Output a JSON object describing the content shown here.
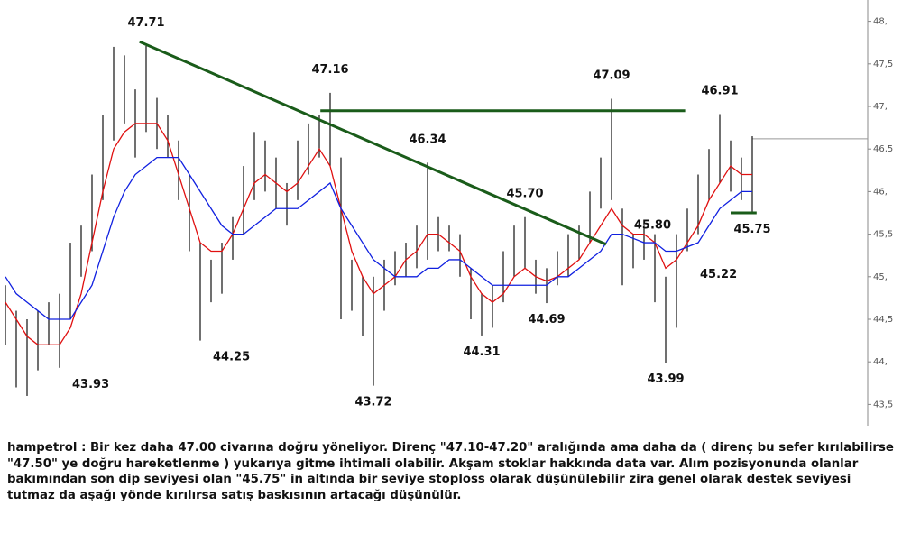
{
  "chart_data": {
    "type": "ohlc",
    "high": [
      44.9,
      44.6,
      44.5,
      44.6,
      44.7,
      44.8,
      45.4,
      45.6,
      46.2,
      46.9,
      47.7,
      47.6,
      47.2,
      47.71,
      47.1,
      46.9,
      46.6,
      46.2,
      45.4,
      45.2,
      45.4,
      45.7,
      46.3,
      46.7,
      46.6,
      46.4,
      46.1,
      46.6,
      46.8,
      46.9,
      47.16,
      46.4,
      45.2,
      45.0,
      45.0,
      45.2,
      45.3,
      45.4,
      45.6,
      46.34,
      45.7,
      45.6,
      45.5,
      45.1,
      44.8,
      44.9,
      45.3,
      45.6,
      45.7,
      45.2,
      45.1,
      45.3,
      45.5,
      45.6,
      46.0,
      46.4,
      47.09,
      45.8,
      45.5,
      45.6,
      45.5,
      45.0,
      45.5,
      45.8,
      46.2,
      46.5,
      46.91,
      46.6,
      46.4,
      46.65
    ],
    "low": [
      44.2,
      43.7,
      43.6,
      43.9,
      44.2,
      43.93,
      44.5,
      45.0,
      45.3,
      45.9,
      46.6,
      46.8,
      46.4,
      46.7,
      46.5,
      46.4,
      45.9,
      45.3,
      44.25,
      44.7,
      44.8,
      45.2,
      45.5,
      45.9,
      46.0,
      45.8,
      45.6,
      45.9,
      46.2,
      46.4,
      46.3,
      44.5,
      44.6,
      44.3,
      43.72,
      44.6,
      44.9,
      45.0,
      45.1,
      45.2,
      45.3,
      45.3,
      45.0,
      44.5,
      44.31,
      44.4,
      44.7,
      45.0,
      45.1,
      44.8,
      44.69,
      44.9,
      45.0,
      45.2,
      45.4,
      45.8,
      45.9,
      44.9,
      45.1,
      45.2,
      44.7,
      43.99,
      44.4,
      45.3,
      45.5,
      45.9,
      46.1,
      46.0,
      45.9,
      45.75
    ],
    "series": [
      {
        "color": "#e01010",
        "values": [
          44.7,
          44.5,
          44.3,
          44.2,
          44.2,
          44.2,
          44.4,
          44.8,
          45.4,
          46.0,
          46.5,
          46.7,
          46.8,
          46.8,
          46.8,
          46.6,
          46.2,
          45.8,
          45.4,
          45.3,
          45.3,
          45.5,
          45.8,
          46.1,
          46.2,
          46.1,
          46.0,
          46.1,
          46.3,
          46.5,
          46.3,
          45.8,
          45.3,
          45.0,
          44.8,
          44.9,
          45.0,
          45.2,
          45.3,
          45.5,
          45.5,
          45.4,
          45.3,
          45.0,
          44.8,
          44.7,
          44.8,
          45.0,
          45.1,
          45.0,
          44.95,
          45.0,
          45.1,
          45.2,
          45.4,
          45.6,
          45.8,
          45.6,
          45.5,
          45.5,
          45.4,
          45.1,
          45.2,
          45.4,
          45.6,
          45.9,
          46.1,
          46.3,
          46.2,
          46.2
        ]
      },
      {
        "color": "#1020e0",
        "values": [
          45.0,
          44.8,
          44.7,
          44.6,
          44.5,
          44.5,
          44.5,
          44.7,
          44.9,
          45.3,
          45.7,
          46.0,
          46.2,
          46.3,
          46.4,
          46.4,
          46.4,
          46.2,
          46.0,
          45.8,
          45.6,
          45.5,
          45.5,
          45.6,
          45.7,
          45.8,
          45.8,
          45.8,
          45.9,
          46.0,
          46.1,
          45.8,
          45.6,
          45.4,
          45.2,
          45.1,
          45.0,
          45.0,
          45.0,
          45.1,
          45.1,
          45.2,
          45.2,
          45.1,
          45.0,
          44.9,
          44.9,
          44.9,
          44.9,
          44.9,
          44.9,
          45.0,
          45.0,
          45.1,
          45.2,
          45.3,
          45.5,
          45.5,
          45.45,
          45.4,
          45.4,
          45.3,
          45.3,
          45.35,
          45.4,
          45.6,
          45.8,
          45.9,
          46.0,
          46.0
        ]
      }
    ],
    "ylim": [
      43.25,
      48.25
    ],
    "yticks": [
      {
        "value": 43.5,
        "label": "43,5"
      },
      {
        "value": 44,
        "label": "44,"
      },
      {
        "value": 44.5,
        "label": "44,5"
      },
      {
        "value": 45,
        "label": "45,"
      },
      {
        "value": 45.5,
        "label": "45,5"
      },
      {
        "value": 46,
        "label": "46,"
      },
      {
        "value": 46.5,
        "label": "46,5"
      },
      {
        "value": 47,
        "label": "47,"
      },
      {
        "value": 47.5,
        "label": "47,5"
      },
      {
        "value": 48,
        "label": "48,"
      }
    ],
    "annotations": [
      {
        "x": 13,
        "value": 47.71,
        "label": "47.71"
      },
      {
        "x": 5,
        "value": 43.93,
        "label": "43.93"
      },
      {
        "x": 18,
        "value": 44.25,
        "label": "44.25"
      },
      {
        "x": 30,
        "value": 47.16,
        "label": "47.16"
      },
      {
        "x": 34,
        "value": 43.72,
        "label": "43.72"
      },
      {
        "x": 39,
        "value": 46.34,
        "label": "46.34"
      },
      {
        "x": 44,
        "value": 44.31,
        "label": "44.31"
      },
      {
        "x": 48,
        "value": 45.7,
        "label": "45.70"
      },
      {
        "x": 50,
        "value": 44.69,
        "label": "44.69"
      },
      {
        "x": 56,
        "value": 47.09,
        "label": "47.09"
      },
      {
        "x": 61,
        "value": 43.99,
        "label": "43.99"
      },
      {
        "x": 62,
        "value": 45.8,
        "label": "45.80"
      },
      {
        "x": 63,
        "value": 45.22,
        "label": "45.22"
      },
      {
        "x": 66,
        "value": 46.91,
        "label": "46.91"
      },
      {
        "x": 69,
        "value": 45.75,
        "label": "45.75"
      }
    ],
    "trend_lines": [
      {
        "color": "#1a5c1a",
        "x": [
          12.4,
          55.5
        ],
        "values": [
          47.76,
          45.38
        ]
      },
      {
        "color": "#1a5c1a",
        "x": [
          29.1,
          62.8
        ],
        "values": [
          46.95,
          46.95
        ]
      },
      {
        "color": "#1a5c1a",
        "x": [
          67,
          69.4
        ],
        "values": [
          45.75,
          45.75
        ]
      }
    ],
    "last_price": 46.62
  },
  "commentary": "hampetrol : Bir kez daha 47.00 civarına doğru yöneliyor. Direnç \"47.10-47.20\" aralığında ama daha da ( direnç bu sefer kırılabilirse \"47.50\" ye doğru hareketlenme ) yukarıya gitme ihtimali olabilir. Akşam stoklar hakkında data var. Alım pozisyonunda olanlar bakımından son dip seviyesi olan \"45.75\" in altında bir seviye stoploss olarak düşünülebilir zira genel olarak destek seviyesi tutmaz da aşağı yönde kırılırsa satış baskısının artacağı düşünülür."
}
